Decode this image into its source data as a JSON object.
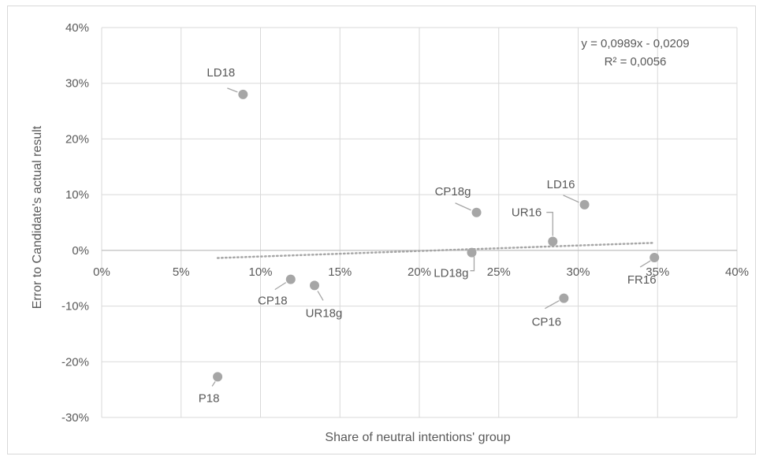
{
  "chart_data": {
    "type": "scatter",
    "xlabel": "Share of neutral intentions' group",
    "ylabel": "Error to Candidate's actual result",
    "xlim": [
      0,
      0.4
    ],
    "ylim": [
      -0.3,
      0.4
    ],
    "x_ticks": [
      {
        "value": 0.0,
        "label": "0%"
      },
      {
        "value": 0.05,
        "label": "5%"
      },
      {
        "value": 0.1,
        "label": "10%"
      },
      {
        "value": 0.15,
        "label": "15%"
      },
      {
        "value": 0.2,
        "label": "20%"
      },
      {
        "value": 0.25,
        "label": "25%"
      },
      {
        "value": 0.3,
        "label": "30%"
      },
      {
        "value": 0.35,
        "label": "35%"
      },
      {
        "value": 0.4,
        "label": "40%"
      }
    ],
    "y_ticks": [
      {
        "value": 0.4,
        "label": "40%"
      },
      {
        "value": 0.3,
        "label": "30%"
      },
      {
        "value": 0.2,
        "label": "20%"
      },
      {
        "value": 0.1,
        "label": "10%"
      },
      {
        "value": 0.0,
        "label": "0%"
      },
      {
        "value": -0.1,
        "label": "-10%"
      },
      {
        "value": -0.2,
        "label": "-20%"
      },
      {
        "value": -0.3,
        "label": "-30%"
      }
    ],
    "grid": true,
    "points": [
      {
        "label": "LD18",
        "x": 0.089,
        "y": 0.28
      },
      {
        "label": "P18",
        "x": 0.073,
        "y": -0.227
      },
      {
        "label": "CP18",
        "x": 0.119,
        "y": -0.052
      },
      {
        "label": "UR18g",
        "x": 0.134,
        "y": -0.063
      },
      {
        "label": "LD18g",
        "x": 0.233,
        "y": -0.004
      },
      {
        "label": "CP18g",
        "x": 0.236,
        "y": 0.068
      },
      {
        "label": "UR16",
        "x": 0.284,
        "y": 0.016
      },
      {
        "label": "CP16",
        "x": 0.291,
        "y": -0.086
      },
      {
        "label": "LD16",
        "x": 0.304,
        "y": 0.082
      },
      {
        "label": "FR16",
        "x": 0.348,
        "y": -0.013
      }
    ],
    "trendline": {
      "slope": 0.0989,
      "intercept": -0.0209,
      "x_range": [
        0.073,
        0.348
      ],
      "equation": "y = 0,0989x - 0,0209",
      "r_squared": "R² = 0,0056"
    },
    "colors": {
      "point": "#a6a6a6",
      "grid": "#d9d9d9",
      "axis": "#bfbfbf",
      "trendline": "#a6a6a6",
      "text": "#595959"
    }
  }
}
